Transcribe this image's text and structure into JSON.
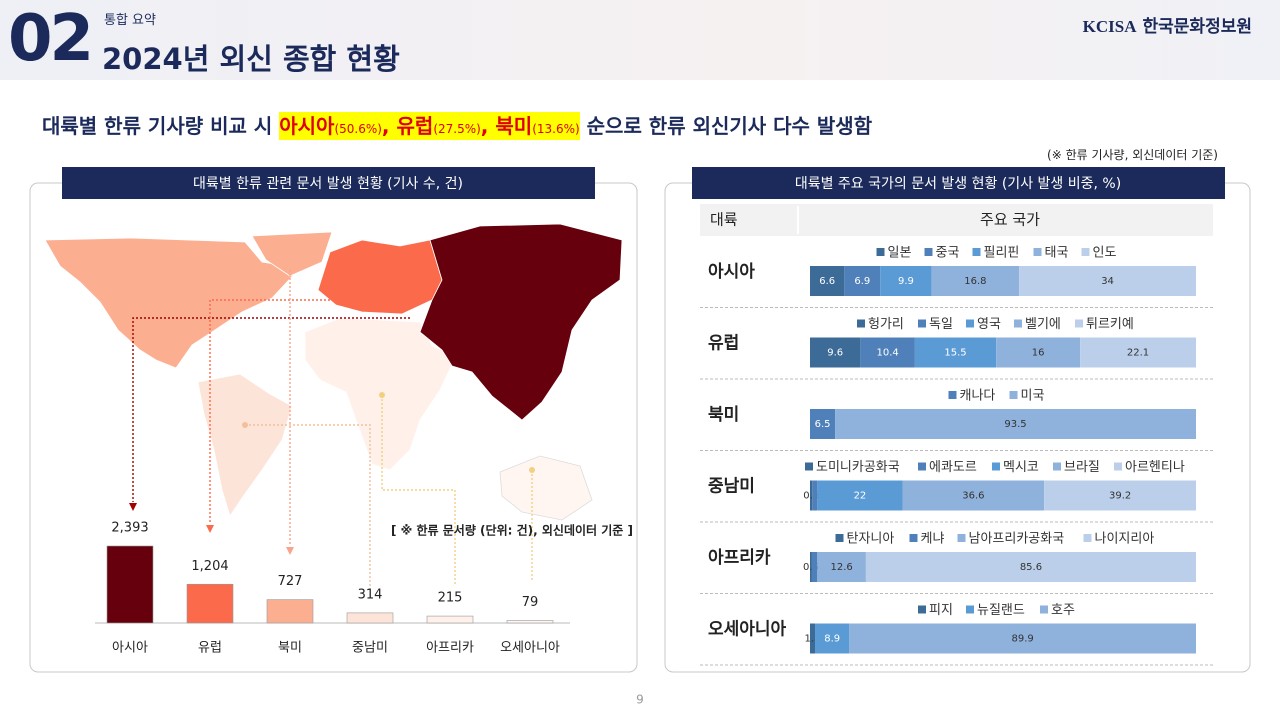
{
  "header": {
    "section_number": "02",
    "section_label": "통합 요약",
    "title": "2024년 외신 종합 현황",
    "logo_mark": "KCISA",
    "logo_text": "한국문화정보원"
  },
  "headline": {
    "lead": "대륙별 한류 기사량 비교 시",
    "highlights": [
      {
        "name": "아시아",
        "share": "(50.6%)"
      },
      {
        "name": "유럽",
        "share": "(27.5%)"
      },
      {
        "name": "북미",
        "share": "(13.6%)"
      }
    ],
    "separator": ",",
    "tail": "순으로 한류 외신기사 다수 발생함",
    "note": "(※ 한류 기사량, 외신데이터 기준)"
  },
  "right_panel": {
    "title": "대륙별 주요 국가의 문서 발생 현황 (기사 발생 비중, %)",
    "header": [
      "대륙",
      "주요 국가"
    ]
  },
  "page_number": "9",
  "chart_data": [
    {
      "type": "bar",
      "title": "대륙별 한류 관련 문서 발생 현황 (기사 수, 건)",
      "note": "[ ※ 한류 문서량 (단위: 건), 외신데이터 기준 ]",
      "categories": [
        "아시아",
        "유럽",
        "북미",
        "중남미",
        "아프리카",
        "오세아니아"
      ],
      "values": [
        2393,
        1204,
        727,
        314,
        215,
        79
      ],
      "value_labels": [
        "2,393",
        "1,204",
        "727",
        "314",
        "215",
        "79"
      ],
      "colors": [
        "#67000d",
        "#fb6a4a",
        "#fcae91",
        "#fde4d8",
        "#fff0ea",
        "#fff5f1"
      ]
    },
    {
      "type": "stacked_bar",
      "title": "아시아",
      "series": [
        {
          "name": "일본",
          "color": "#3d6b98",
          "values": [
            6.6
          ]
        },
        {
          "name": "중국",
          "color": "#4f80b9",
          "values": [
            6.9
          ]
        },
        {
          "name": "필리핀",
          "color": "#5b9bd5",
          "values": [
            9.9
          ]
        },
        {
          "name": "태국",
          "color": "#8fb2dd",
          "values": [
            16.8
          ]
        },
        {
          "name": "인도",
          "color": "#bccfea",
          "values": [
            34
          ]
        }
      ]
    },
    {
      "type": "stacked_bar",
      "title": "유럽",
      "series": [
        {
          "name": "헝가리",
          "color": "#3d6b98",
          "values": [
            9.6
          ]
        },
        {
          "name": "독일",
          "color": "#4f80b9",
          "values": [
            10.4
          ]
        },
        {
          "name": "영국",
          "color": "#5b9bd5",
          "values": [
            15.5
          ]
        },
        {
          "name": "벨기에",
          "color": "#8fb2dd",
          "values": [
            16
          ]
        },
        {
          "name": "튀르키예",
          "color": "#bccfea",
          "values": [
            22.1
          ]
        }
      ]
    },
    {
      "type": "stacked_bar",
      "title": "북미",
      "series": [
        {
          "name": "캐나다",
          "color": "#4f80b9",
          "values": [
            6.5
          ]
        },
        {
          "name": "미국",
          "color": "#8fb2dd",
          "values": [
            93.5
          ]
        }
      ]
    },
    {
      "type": "stacked_bar",
      "title": "중남미",
      "series": [
        {
          "name": "도미니카공화국",
          "color": "#3d6b98",
          "values": [
            0.6
          ]
        },
        {
          "name": "에콰도르",
          "color": "#4f80b9",
          "values": [
            1.3
          ]
        },
        {
          "name": "멕시코",
          "color": "#5b9bd5",
          "values": [
            22
          ]
        },
        {
          "name": "브라질",
          "color": "#8fb2dd",
          "values": [
            36.6
          ]
        },
        {
          "name": "아르헨티나",
          "color": "#bccfea",
          "values": [
            39.2
          ]
        }
      ]
    },
    {
      "type": "stacked_bar",
      "title": "아프리카",
      "series": [
        {
          "name": "탄자니아",
          "color": "#3d6b98",
          "values": [
            0.5
          ]
        },
        {
          "name": "케냐",
          "color": "#4f80b9",
          "values": [
            1.4
          ]
        },
        {
          "name": "남아프리카공화국",
          "color": "#8fb2dd",
          "values": [
            12.6
          ]
        },
        {
          "name": "나이지리아",
          "color": "#bccfea",
          "values": [
            85.6
          ]
        }
      ]
    },
    {
      "type": "stacked_bar",
      "title": "오세아니아",
      "series": [
        {
          "name": "피지",
          "color": "#3d6b98",
          "values": [
            1.3
          ]
        },
        {
          "name": "뉴질랜드",
          "color": "#5b9bd5",
          "values": [
            8.9
          ]
        },
        {
          "name": "호주",
          "color": "#8fb2dd",
          "values": [
            89.9
          ]
        }
      ]
    }
  ]
}
